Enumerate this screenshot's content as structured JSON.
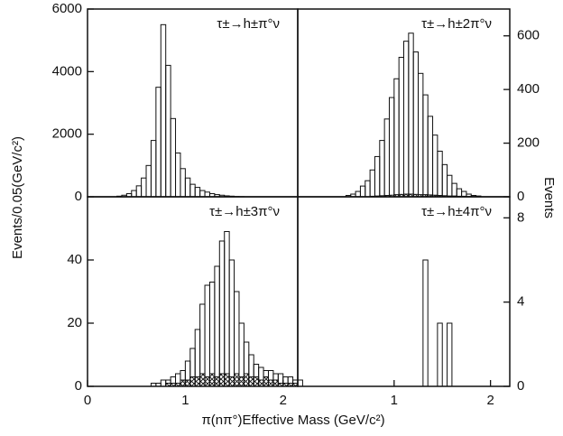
{
  "figure": {
    "ylabel": "Events/0.05(GeV/c²)",
    "y2label": "Events",
    "xlabel": "π(nπ°)Effective Mass (GeV/c²)"
  },
  "chart_data": [
    {
      "type": "histogram",
      "title": "τ±→h±π°ν",
      "yaxis": "left",
      "xlim": [
        0,
        2.15
      ],
      "ylim": [
        0,
        6000
      ],
      "yticks": [
        0,
        2000,
        4000,
        6000
      ],
      "bins": [
        0.3,
        0.35,
        0.4,
        0.45,
        0.5,
        0.55,
        0.6,
        0.65,
        0.7,
        0.75,
        0.8,
        0.85,
        0.9,
        0.95,
        1.0,
        1.05,
        1.1,
        1.15,
        1.2,
        1.25,
        1.3,
        1.35,
        1.4,
        1.45,
        1.5,
        1.55,
        1.6
      ],
      "series": [
        {
          "color": "#111111",
          "hatch": false,
          "values": [
            20,
            50,
            100,
            200,
            350,
            600,
            1000,
            1800,
            3500,
            5500,
            4200,
            2500,
            1400,
            900,
            600,
            400,
            300,
            200,
            150,
            100,
            70,
            50,
            30,
            20,
            10,
            5
          ]
        }
      ]
    },
    {
      "type": "histogram",
      "title": "τ±→h±2π°ν",
      "yaxis": "right",
      "xlim": [
        0,
        2.2
      ],
      "ylim": [
        0,
        700
      ],
      "yticks": [
        0,
        200,
        400,
        600
      ],
      "bins": [
        0.5,
        0.55,
        0.6,
        0.65,
        0.7,
        0.75,
        0.8,
        0.85,
        0.9,
        0.95,
        1.0,
        1.05,
        1.1,
        1.15,
        1.2,
        1.25,
        1.3,
        1.35,
        1.4,
        1.45,
        1.5,
        1.55,
        1.6,
        1.65,
        1.7,
        1.75,
        1.8,
        1.85,
        1.9
      ],
      "series": [
        {
          "color": "#111111",
          "hatch": false,
          "values": [
            5,
            10,
            20,
            40,
            60,
            100,
            150,
            210,
            290,
            370,
            440,
            520,
            580,
            610,
            540,
            460,
            380,
            300,
            230,
            170,
            120,
            80,
            50,
            30,
            20,
            10,
            5,
            3
          ]
        },
        {
          "color": "#111111",
          "hatch": true,
          "values": [
            0,
            0,
            0,
            0,
            0,
            2,
            3,
            4,
            5,
            6,
            8,
            9,
            10,
            10,
            9,
            8,
            8,
            7,
            6,
            5,
            4,
            3,
            3,
            2,
            2,
            1,
            1,
            0
          ]
        }
      ]
    },
    {
      "type": "histogram",
      "title": "τ±→h±3π°ν",
      "yaxis": "left",
      "xlim": [
        0,
        2.15
      ],
      "ylim": [
        0,
        60
      ],
      "yticks": [
        0,
        20,
        40
      ],
      "xticks": [
        0,
        1,
        2
      ],
      "bins": [
        0.6,
        0.65,
        0.7,
        0.75,
        0.8,
        0.85,
        0.9,
        0.95,
        1.0,
        1.05,
        1.1,
        1.15,
        1.2,
        1.25,
        1.3,
        1.35,
        1.4,
        1.45,
        1.5,
        1.55,
        1.6,
        1.65,
        1.7,
        1.75,
        1.8,
        1.85,
        1.9,
        1.95,
        2.0,
        2.05,
        2.1,
        2.15,
        2.2
      ],
      "series": [
        {
          "color": "#111111",
          "hatch": false,
          "values": [
            0,
            1,
            1,
            2,
            2,
            3,
            4,
            5,
            8,
            12,
            18,
            26,
            32,
            33,
            38,
            46,
            49,
            40,
            30,
            20,
            14,
            10,
            7,
            6,
            5,
            5,
            4,
            4,
            3,
            3,
            2,
            2
          ]
        },
        {
          "color": "#111111",
          "hatch": true,
          "values": [
            0,
            0,
            0,
            0,
            1,
            1,
            1,
            2,
            2,
            3,
            3,
            4,
            3,
            4,
            3,
            4,
            4,
            3,
            4,
            3,
            4,
            3,
            3,
            2,
            3,
            2,
            2,
            1,
            1,
            1,
            1,
            0
          ]
        }
      ]
    },
    {
      "type": "histogram",
      "title": "τ±→h±4π°ν",
      "yaxis": "right",
      "xlim": [
        0,
        2.2
      ],
      "ylim": [
        0,
        9
      ],
      "yticks": [
        0,
        4,
        8
      ],
      "xticks": [
        1,
        2
      ],
      "bins": [
        1.3,
        1.35,
        1.4,
        1.45,
        1.5,
        1.55,
        1.6
      ],
      "series": [
        {
          "color": "#111111",
          "hatch": false,
          "values": [
            6,
            0,
            0,
            3,
            0,
            3
          ]
        }
      ]
    }
  ]
}
